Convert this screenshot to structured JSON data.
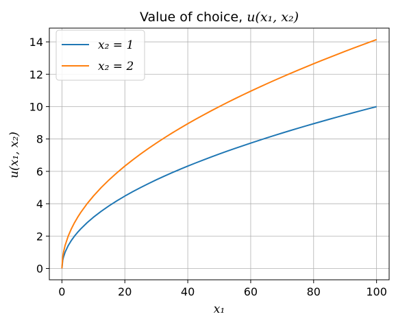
{
  "chart_data": {
    "type": "line",
    "title_parts": {
      "text": "Value of choice, ",
      "math": "u(x₁, x₂)"
    },
    "xlabel": "x₁",
    "ylabel": "u(x₁, x₂)",
    "xlim": [
      -4,
      104
    ],
    "ylim": [
      -0.7,
      14.85
    ],
    "xticks": [
      0,
      20,
      40,
      60,
      80,
      100
    ],
    "yticks": [
      0,
      2,
      4,
      6,
      8,
      10,
      12,
      14
    ],
    "grid": true,
    "legend_position": "upper-left",
    "x": [
      0,
      0.25,
      0.5,
      1,
      2,
      3,
      4,
      5,
      6,
      8,
      10,
      12.5,
      15,
      17.5,
      20,
      22.5,
      25,
      27.5,
      30,
      32.5,
      35,
      37.5,
      40,
      42.5,
      45,
      47.5,
      50,
      52.5,
      55,
      57.5,
      60,
      62.5,
      65,
      67.5,
      70,
      72.5,
      75,
      77.5,
      80,
      82.5,
      85,
      87.5,
      90,
      92.5,
      95,
      97.5,
      100
    ],
    "series": [
      {
        "name": "x₂ = 1",
        "color": "#1f77b4",
        "values": [
          0,
          0.5,
          0.707,
          1,
          1.414,
          1.732,
          2,
          2.236,
          2.449,
          2.828,
          3.162,
          3.536,
          3.873,
          4.183,
          4.472,
          4.743,
          5,
          5.244,
          5.477,
          5.701,
          5.916,
          6.124,
          6.325,
          6.519,
          6.708,
          6.892,
          7.071,
          7.246,
          7.416,
          7.583,
          7.746,
          7.906,
          8.062,
          8.216,
          8.367,
          8.515,
          8.66,
          8.803,
          8.944,
          9.083,
          9.22,
          9.354,
          9.487,
          9.618,
          9.747,
          9.874,
          10
        ]
      },
      {
        "name": "x₂ = 2",
        "color": "#ff7f0e",
        "values": [
          0,
          0.707,
          1,
          1.414,
          2,
          2.449,
          2.828,
          3.162,
          3.464,
          4,
          4.472,
          5,
          5.477,
          5.916,
          6.325,
          6.708,
          7.071,
          7.416,
          7.746,
          8.062,
          8.367,
          8.66,
          8.944,
          9.22,
          9.487,
          9.747,
          10,
          10.247,
          10.488,
          10.724,
          10.954,
          11.18,
          11.402,
          11.619,
          11.832,
          12.042,
          12.247,
          12.45,
          12.649,
          12.845,
          13.038,
          13.229,
          13.416,
          13.601,
          13.784,
          13.964,
          14.142
        ]
      }
    ]
  }
}
